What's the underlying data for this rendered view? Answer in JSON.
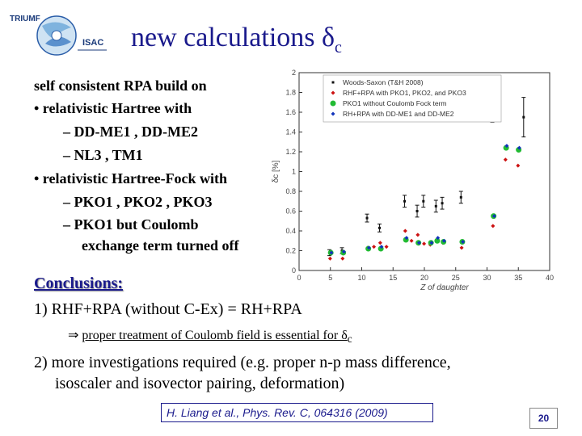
{
  "logo": {
    "text_top": "TRIUMF",
    "text_bottom": "ISAC"
  },
  "title": {
    "main": "new calculations δ",
    "sub": "c"
  },
  "left_text": {
    "intro": "self consistent RPA build on",
    "bullet_1": "•  relativistic Hartree with",
    "dash_1": "–  DD-ME1 , DD-ME2",
    "dash_2": "–  NL3 , TM1",
    "bullet_2": "•  relativistic Hartree-Fock with",
    "dash_3": "–  PKO1 , PKO2 , PKO3",
    "dash_4": "–  PKO1 but Coulomb",
    "dash_4b": "exchange term turned off"
  },
  "conclusions": {
    "heading": "Conclusions:",
    "item_1": "1) RHF+RPA (without C-Ex) =  RH+RPA",
    "arrow_sym": "⇒",
    "arrow_text": "proper treatment of Coulomb field is essential for δ",
    "arrow_sub": "c",
    "item_2a": "2) more investigations required (e.g. proper n-p mass difference,",
    "item_2b": "isoscaler and isovector pairing, deformation)"
  },
  "reference": "H. Liang et al., Phys. Rev.  C, 064316 (2009)",
  "page_number": "20",
  "chart_data": {
    "type": "scatter",
    "xlabel": "Z of daughter",
    "ylabel": "δc [%]",
    "xlim": [
      0,
      40
    ],
    "ylim": [
      0,
      2
    ],
    "xticks": [
      "0",
      "5",
      "10",
      "15",
      "20",
      "25",
      "30",
      "35",
      "40"
    ],
    "yticks": [
      "0",
      "0.2",
      "0.4",
      "0.6",
      "0.8",
      "1",
      "1.2",
      "1.4",
      "1.6",
      "1.8",
      "2"
    ],
    "legend_position": "top-right",
    "series": [
      {
        "name": "Woods-Saxon (T&H 2008)",
        "marker": "errorbar",
        "color": "#111111",
        "x": [
          5,
          7,
          11,
          13,
          17,
          19,
          20,
          22,
          23,
          26,
          31,
          36
        ],
        "y": [
          0.18,
          0.2,
          0.53,
          0.43,
          0.7,
          0.6,
          0.7,
          0.65,
          0.68,
          0.74,
          1.7,
          1.55
        ],
        "err": [
          0.03,
          0.03,
          0.04,
          0.04,
          0.06,
          0.06,
          0.06,
          0.06,
          0.06,
          0.06,
          0.2,
          0.2
        ]
      },
      {
        "name": "RHF+RPA with PKO1, PKO2, and PKO3",
        "marker": "diamond",
        "color": "#cc1111",
        "x": [
          5,
          7,
          11,
          12,
          13,
          14,
          17,
          18,
          19,
          20,
          21,
          22,
          23,
          26,
          31,
          33,
          35
        ],
        "y": [
          0.12,
          0.12,
          0.23,
          0.24,
          0.28,
          0.24,
          0.4,
          0.3,
          0.36,
          0.27,
          0.26,
          0.3,
          0.28,
          0.23,
          0.45,
          1.12,
          1.06
        ]
      },
      {
        "name": "PKO1 without Coulomb Fock term",
        "marker": "circle",
        "color": "#22bb33",
        "x": [
          5,
          7,
          11,
          13,
          17,
          19,
          21,
          22,
          23,
          26,
          31,
          33,
          35
        ],
        "y": [
          0.18,
          0.18,
          0.22,
          0.22,
          0.31,
          0.28,
          0.28,
          0.3,
          0.29,
          0.29,
          0.55,
          1.24,
          1.22
        ]
      },
      {
        "name": "RH+RPA with DD-ME1 and DD-ME2",
        "marker": "diamond",
        "color": "#1133bb",
        "x": [
          5,
          7,
          11,
          13,
          17,
          19,
          21,
          22,
          23,
          26,
          31,
          33,
          35
        ],
        "y": [
          0.18,
          0.19,
          0.23,
          0.24,
          0.33,
          0.28,
          0.28,
          0.33,
          0.3,
          0.29,
          0.55,
          1.26,
          1.24
        ]
      }
    ]
  }
}
